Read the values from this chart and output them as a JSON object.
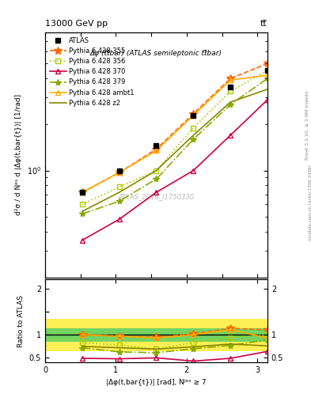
{
  "title_top": "13000 GeV pp",
  "title_right": "tt̅",
  "subtitle": "Δφ (tt̅bar) (ATLAS semileptonic tt̅bar)",
  "watermark": "ATLAS_2019_I1750330",
  "rivet_label": "Rivet 3.1.10, ≥ 1.9M events",
  "mcplots_label": "mcplots.cern.ch [arXiv:1306.3436]",
  "ylabel_main": "d²σ / d Nᵉˢ d |Δφ(t,bar{t})| [1/rad]",
  "ylabel_ratio": "Ratio to ATLAS",
  "xlabel": "|Δφ(t,bar{t})| [rad], Nʲᵉˢ ≥ 7",
  "xlim": [
    0,
    3.14159
  ],
  "ylim_main": [
    0.2,
    8.0
  ],
  "ylim_ratio": [
    0.4,
    2.2
  ],
  "x_data": [
    0.5236,
    1.0472,
    1.5708,
    2.0944,
    2.618,
    3.14159
  ],
  "atlas_y": [
    0.72,
    1.0,
    1.45,
    2.3,
    3.5,
    4.5
  ],
  "p355_y": [
    0.72,
    0.97,
    1.38,
    2.35,
    4.0,
    5.0
  ],
  "p356_y": [
    0.6,
    0.78,
    1.0,
    1.9,
    3.3,
    4.5
  ],
  "p370_y": [
    0.35,
    0.48,
    0.72,
    1.0,
    1.7,
    2.9
  ],
  "p379_y": [
    0.52,
    0.63,
    0.88,
    1.6,
    2.7,
    4.0
  ],
  "pambt1_y": [
    0.72,
    0.97,
    1.35,
    2.3,
    3.9,
    4.2
  ],
  "pz2_y": [
    0.54,
    0.72,
    1.0,
    1.7,
    2.8,
    3.4
  ],
  "ratio_p355": [
    1.0,
    0.97,
    0.95,
    1.02,
    1.14,
    1.11
  ],
  "ratio_p356": [
    0.83,
    0.78,
    0.69,
    0.83,
    0.94,
    1.0
  ],
  "ratio_p370": [
    0.49,
    0.48,
    0.5,
    0.43,
    0.49,
    0.64
  ],
  "ratio_p379": [
    0.72,
    0.63,
    0.61,
    0.7,
    0.77,
    0.89
  ],
  "ratio_pambt1": [
    1.0,
    0.97,
    0.93,
    1.0,
    1.11,
    0.93
  ],
  "ratio_pz2": [
    0.75,
    0.72,
    0.69,
    0.74,
    0.8,
    0.76
  ],
  "color_atlas": "#000000",
  "color_p355": "#ff6600",
  "color_p356": "#aacc00",
  "color_p370": "#cc0044",
  "color_p379": "#88aa00",
  "color_pambt1": "#ffaa00",
  "color_pz2": "#888800",
  "color_band_green": "#44cc66",
  "color_band_yellow": "#ffee44",
  "band_yellow_lo": 0.65,
  "band_yellow_hi": 1.35,
  "band_green_lo": 0.85,
  "band_green_hi": 1.15
}
